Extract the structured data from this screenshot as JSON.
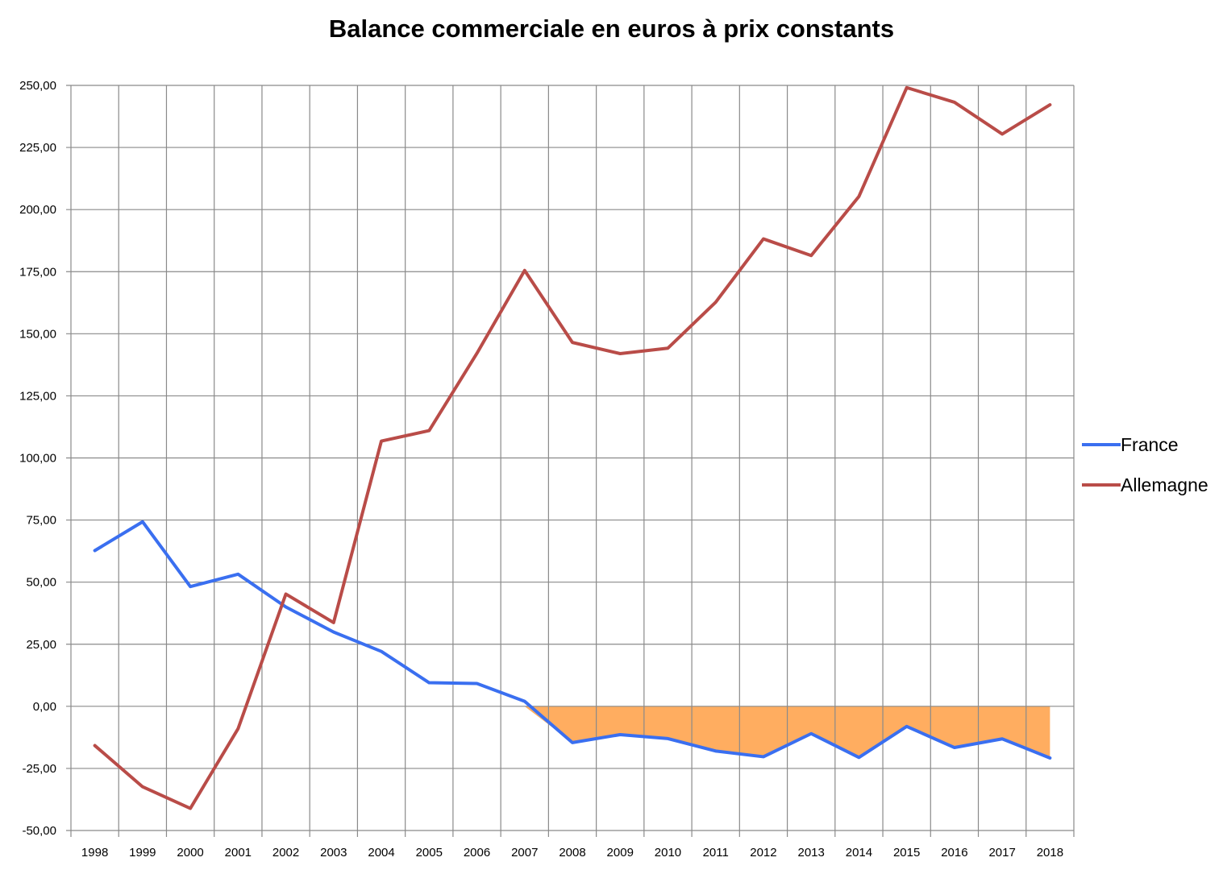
{
  "chart_data": {
    "type": "line",
    "title": "Balance commerciale en euros à prix constants",
    "xlabel": "",
    "ylabel": "",
    "x": [
      "1998",
      "1999",
      "2000",
      "2001",
      "2002",
      "2003",
      "2004",
      "2005",
      "2006",
      "2007",
      "2008",
      "2009",
      "2010",
      "2011",
      "2012",
      "2013",
      "2014",
      "2015",
      "2016",
      "2017",
      "2018"
    ],
    "ylim": [
      -50,
      250
    ],
    "yticks": [
      -50,
      -25,
      0,
      25,
      50,
      75,
      100,
      125,
      150,
      175,
      200,
      225,
      250
    ],
    "ytick_labels": [
      "-50,00",
      "-25,00",
      "0,00",
      "25,00",
      "50,00",
      "75,00",
      "100,00",
      "125,00",
      "150,00",
      "175,00",
      "200,00",
      "225,00",
      "250,00"
    ],
    "grid": true,
    "legend_position": "right",
    "deficit_fill_color": "#FFAD60",
    "series": [
      {
        "name": "France",
        "color": "#3A6FF0",
        "values": [
          62.7,
          74.3,
          48.2,
          53.2,
          40.0,
          29.9,
          22.1,
          9.5,
          9.2,
          2.0,
          -14.6,
          -11.4,
          -13.0,
          -18.0,
          -20.3,
          -11.0,
          -20.6,
          -8.1,
          -16.6,
          -13.1,
          -20.8
        ]
      },
      {
        "name": "Allemagne",
        "color": "#B94C48",
        "values": [
          -15.8,
          -32.4,
          -41.1,
          -9.0,
          45.2,
          33.7,
          106.8,
          111.0,
          142.1,
          175.5,
          146.5,
          142.0,
          144.2,
          162.7,
          188.2,
          181.5,
          205.3,
          249.1,
          243.2,
          230.4,
          242.2
        ]
      }
    ]
  }
}
